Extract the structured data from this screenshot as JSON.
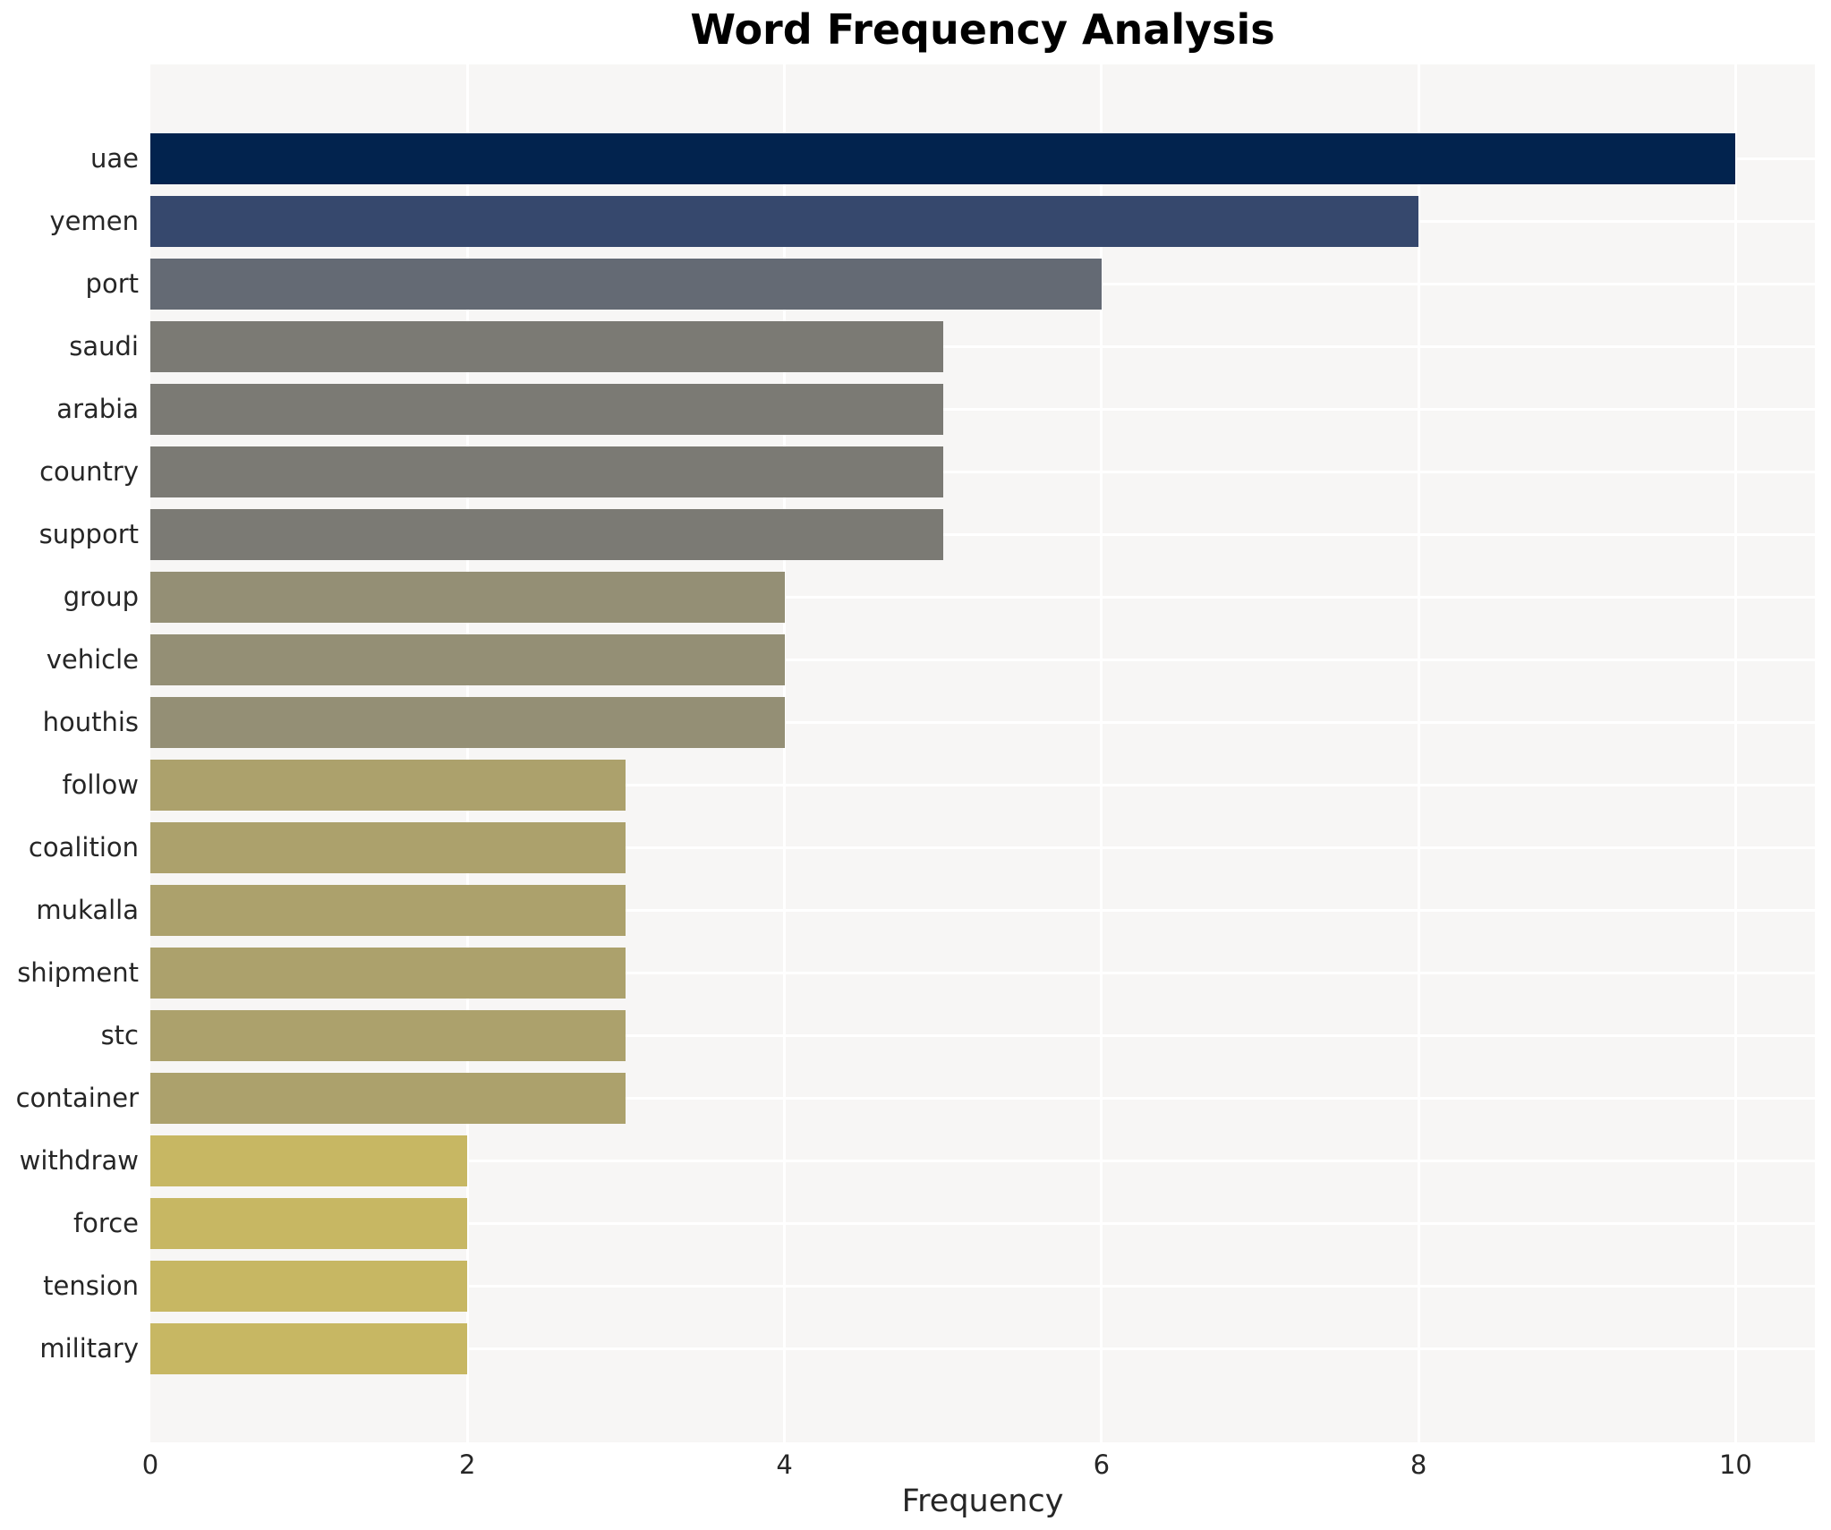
{
  "chart_data": {
    "type": "bar",
    "orientation": "horizontal",
    "title": "Word Frequency Analysis",
    "xlabel": "Frequency",
    "ylabel": "",
    "categories": [
      "uae",
      "yemen",
      "port",
      "saudi",
      "arabia",
      "country",
      "support",
      "group",
      "vehicle",
      "houthis",
      "follow",
      "coalition",
      "mukalla",
      "shipment",
      "stc",
      "container",
      "withdraw",
      "force",
      "tension",
      "military"
    ],
    "values": [
      10,
      8,
      6,
      5,
      5,
      5,
      5,
      4,
      4,
      4,
      3,
      3,
      3,
      3,
      3,
      3,
      2,
      2,
      2,
      2
    ],
    "bar_colors": [
      "#02234e",
      "#36486d",
      "#646a74",
      "#7b7a74",
      "#7b7a74",
      "#7b7a74",
      "#7b7a74",
      "#948f75",
      "#948f75",
      "#948f75",
      "#aca16c",
      "#aca16c",
      "#aca16c",
      "#aca16c",
      "#aca16c",
      "#aca16c",
      "#c7b763",
      "#c7b763",
      "#c7b763",
      "#c7b763"
    ],
    "xticks": [
      0,
      2,
      4,
      6,
      8,
      10
    ],
    "xlim": [
      0,
      10.5
    ],
    "grid": true,
    "legend_position": "none",
    "plot_background": "#f7f6f5",
    "figure_background": "#ffffff",
    "gridline_color": "#ffffff",
    "text_color": "#262626",
    "title_color": "#000000"
  }
}
